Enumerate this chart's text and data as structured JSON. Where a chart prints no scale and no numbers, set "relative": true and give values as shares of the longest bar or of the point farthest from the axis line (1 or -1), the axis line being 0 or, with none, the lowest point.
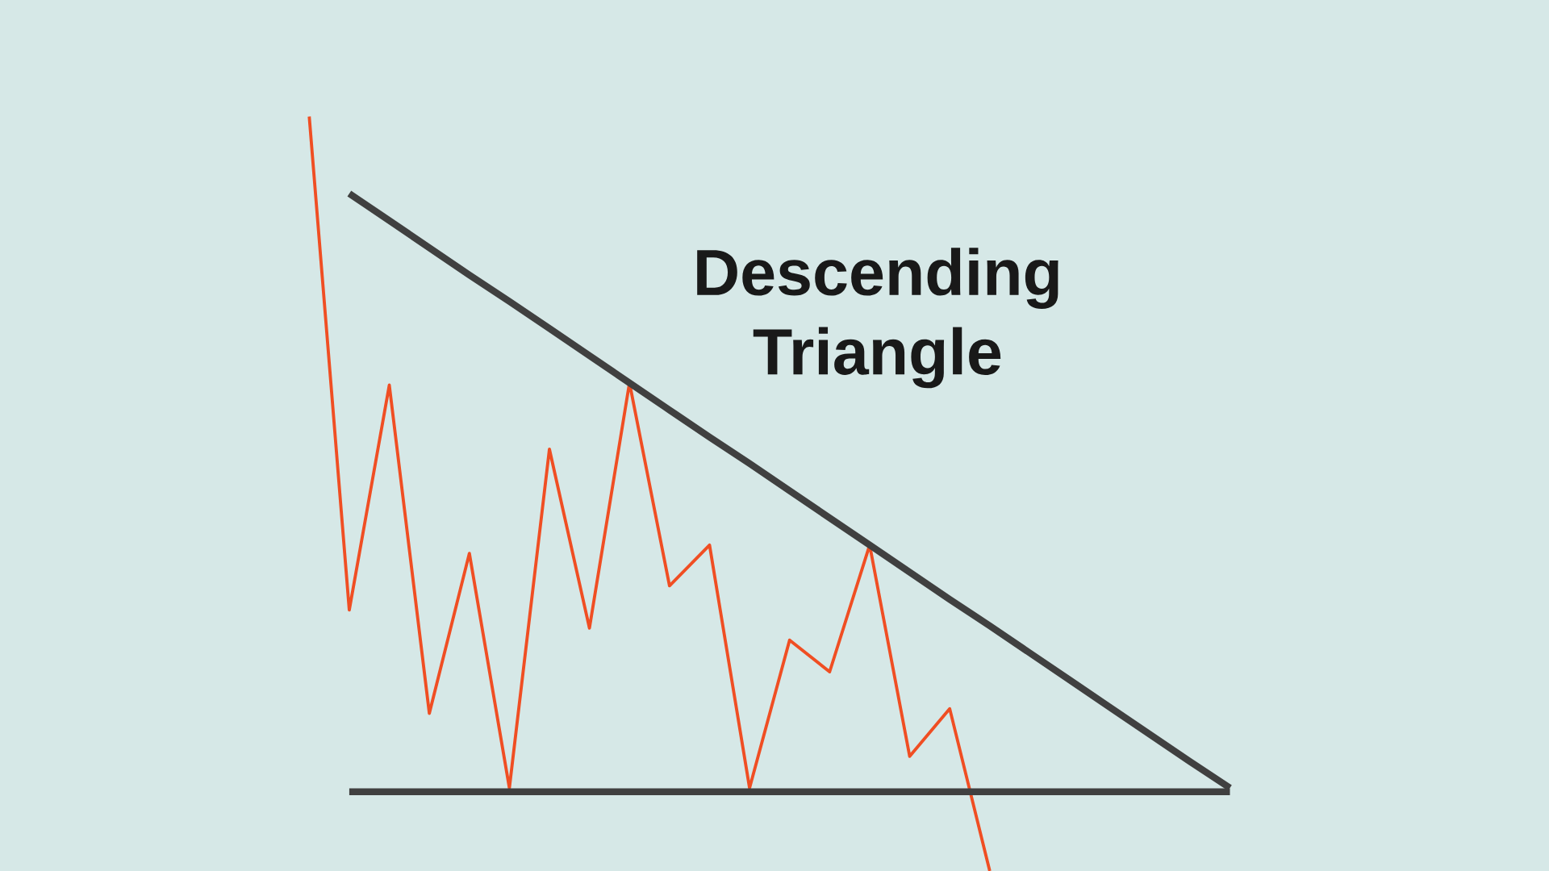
{
  "chart_data": {
    "type": "line",
    "title": "Descending Triangle",
    "relative": true,
    "marker": "none",
    "line_style": "solid",
    "categories": [
      null,
      null,
      null,
      null,
      null,
      null,
      null,
      null,
      null,
      null,
      null,
      null,
      null,
      null,
      null,
      null,
      null,
      null,
      null,
      null,
      null,
      null,
      null,
      null
    ],
    "series": [
      {
        "color": "#f04e23",
        "values": [
          1.0,
          0.346,
          0.644,
          0.209,
          0.421,
          0.11,
          0.559,
          0.322,
          0.647,
          0.378,
          0.432,
          0.11,
          0.306,
          0.264,
          0.432,
          0.152,
          0.215,
          0,
          null,
          null,
          null,
          null,
          null,
          null
        ]
      },
      {
        "color": "#404040",
        "values": [
          null,
          0.898,
          0.862,
          0.826,
          0.79,
          0.755,
          0.719,
          0.683,
          0.647,
          0.611,
          0.575,
          0.54,
          0.504,
          0.468,
          0.432,
          0.396,
          0.36,
          0.325,
          0.289,
          0.253,
          0.217,
          0.181,
          0.145,
          0.11
        ]
      },
      {
        "color": "#404040",
        "values": [
          null,
          0.105,
          0.105,
          0.105,
          0.105,
          0.105,
          0.105,
          0.105,
          0.105,
          0.105,
          0.105,
          0.105,
          0.105,
          0.105,
          0.105,
          0.105,
          0.105,
          0.105,
          0.105,
          0.105,
          0.105,
          0.105,
          0.105,
          0.105
        ]
      }
    ]
  }
}
